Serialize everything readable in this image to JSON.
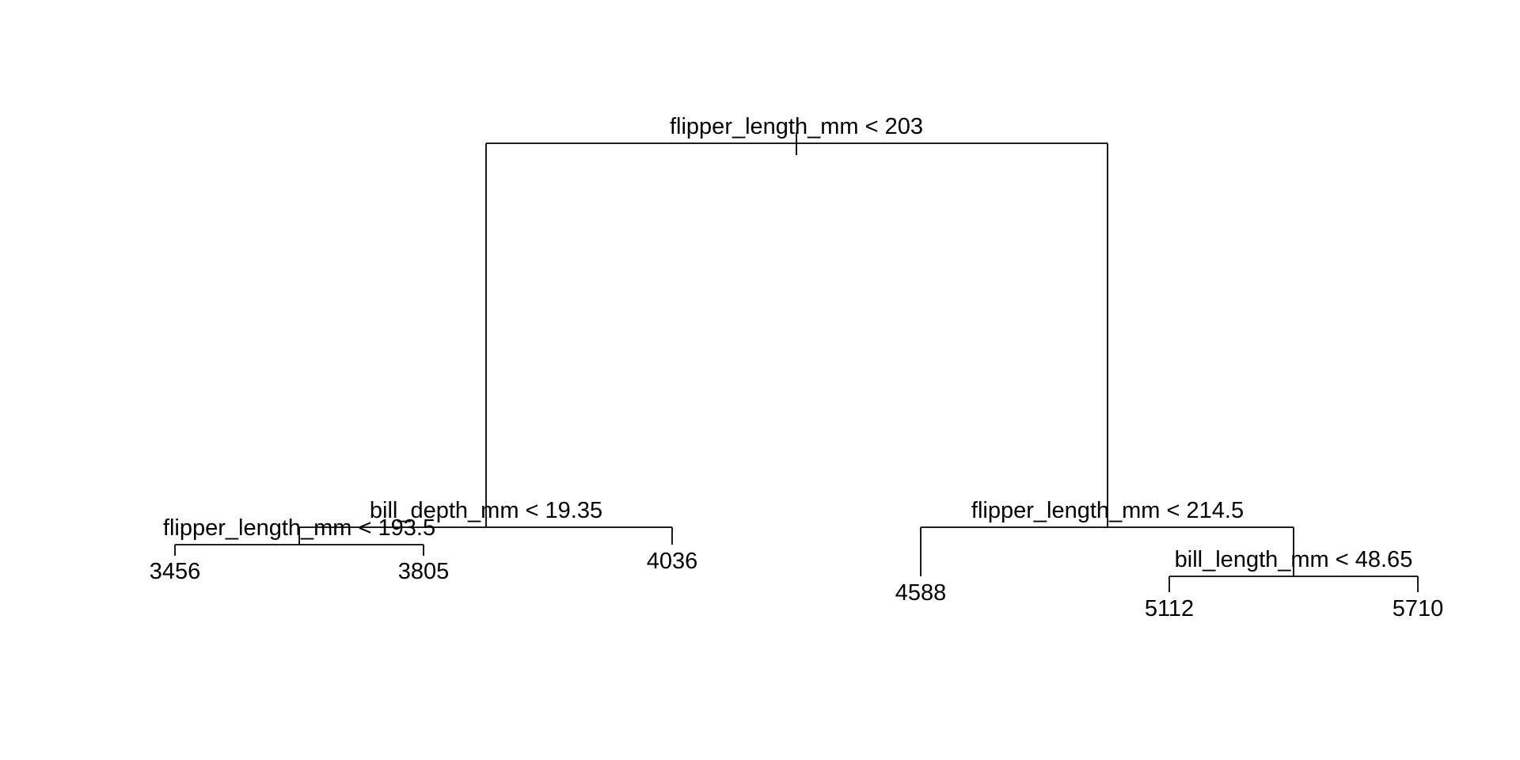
{
  "tree": {
    "root": {
      "id": "n1",
      "split": "flipper_length_mm < 203",
      "left": {
        "id": "n2",
        "split": "bill_depth_mm < 19.35",
        "left": {
          "id": "n4",
          "split": "flipper_length_mm < 193.5",
          "left": {
            "id": "l1",
            "value": "3456"
          },
          "right": {
            "id": "l2",
            "value": "3805"
          }
        },
        "right": {
          "id": "l3",
          "value": "4036"
        }
      },
      "right": {
        "id": "n3",
        "split": "flipper_length_mm < 214.5",
        "left": {
          "id": "l4",
          "value": "4588"
        },
        "right": {
          "id": "n7",
          "split": "bill_length_mm < 48.65",
          "left": {
            "id": "l5",
            "value": "5112"
          },
          "right": {
            "id": "l6",
            "value": "5710"
          }
        }
      }
    }
  }
}
